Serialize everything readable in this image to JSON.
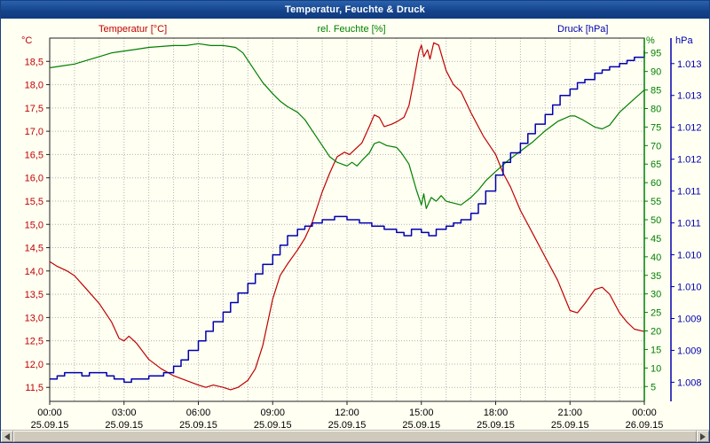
{
  "window": {
    "title": "Temperatur, Feuchte & Druck"
  },
  "legend": {
    "temperature": "Temperatur [°C]",
    "humidity": "rel. Feuchte [%]",
    "pressure": "Druck [hPa]"
  },
  "units": {
    "temperature": "°C",
    "humidity": "%",
    "pressure": "hPa"
  },
  "colors": {
    "temperature": "#c00000",
    "humidity": "#008000",
    "pressure": "#0000b0",
    "grid": "#b4b4b4",
    "frame": "#222222",
    "background": "#fffff2",
    "titlebar": "#174a94",
    "text": "#000000"
  },
  "chart_data": {
    "type": "line",
    "title": "Temperatur, Feuchte & Druck",
    "grid": true,
    "x_axis": {
      "kind": "time",
      "start": "25.09.15 00:00",
      "end": "26.09.15 00:00",
      "hours": 24,
      "grid_interval_hours": 1,
      "ticks": [
        {
          "hour": 0,
          "time": "00:00",
          "date": "25.09.15"
        },
        {
          "hour": 3,
          "time": "03:00",
          "date": "25.09.15"
        },
        {
          "hour": 6,
          "time": "06:00",
          "date": "25.09.15"
        },
        {
          "hour": 9,
          "time": "09:00",
          "date": "25.09.15"
        },
        {
          "hour": 12,
          "time": "12:00",
          "date": "25.09.15"
        },
        {
          "hour": 15,
          "time": "15:00",
          "date": "25.09.15"
        },
        {
          "hour": 18,
          "time": "18:00",
          "date": "25.09.15"
        },
        {
          "hour": 21,
          "time": "21:00",
          "date": "25.09.15"
        },
        {
          "hour": 24,
          "time": "00:00",
          "date": "26.09.15"
        }
      ]
    },
    "axes": {
      "temperature": {
        "unit": "°C",
        "side": "left",
        "color": "#c00000",
        "min": 11.2,
        "max": 19.0,
        "ticks": [
          {
            "v": 18.5,
            "label": "18,5"
          },
          {
            "v": 18,
            "label": "18,0"
          },
          {
            "v": 17.5,
            "label": "17,5"
          },
          {
            "v": 17,
            "label": "17,0"
          },
          {
            "v": 16.5,
            "label": "16,5"
          },
          {
            "v": 16,
            "label": "16,0"
          },
          {
            "v": 15.5,
            "label": "15,5"
          },
          {
            "v": 15,
            "label": "15,0"
          },
          {
            "v": 14.5,
            "label": "14,5"
          },
          {
            "v": 14,
            "label": "14,0"
          },
          {
            "v": 13.5,
            "label": "13,5"
          },
          {
            "v": 13,
            "label": "13,0"
          },
          {
            "v": 12.5,
            "label": "12,5"
          },
          {
            "v": 12,
            "label": "12,0"
          },
          {
            "v": 11.5,
            "label": "11,5"
          }
        ]
      },
      "humidity": {
        "unit": "%",
        "side": "right",
        "color": "#008000",
        "min": 1,
        "max": 99,
        "ticks": [
          {
            "v": 95,
            "label": "95"
          },
          {
            "v": 90,
            "label": "90"
          },
          {
            "v": 85,
            "label": "85"
          },
          {
            "v": 80,
            "label": "80"
          },
          {
            "v": 75,
            "label": "75"
          },
          {
            "v": 70,
            "label": "70"
          },
          {
            "v": 65,
            "label": "65"
          },
          {
            "v": 60,
            "label": "60"
          },
          {
            "v": 55,
            "label": "55"
          },
          {
            "v": 50,
            "label": "50"
          },
          {
            "v": 45,
            "label": "45"
          },
          {
            "v": 40,
            "label": "40"
          },
          {
            "v": 35,
            "label": "35"
          },
          {
            "v": 30,
            "label": "30"
          },
          {
            "v": 25,
            "label": "25"
          },
          {
            "v": 20,
            "label": "20"
          },
          {
            "v": 15,
            "label": "15"
          },
          {
            "v": 10,
            "label": "10"
          },
          {
            "v": 5,
            "label": "5"
          }
        ]
      },
      "pressure": {
        "unit": "hPa",
        "side": "far-right",
        "color": "#0000b0",
        "min": 1007.7,
        "max": 1013.4,
        "ticks": [
          {
            "v": 1013,
            "label": "1.013"
          },
          {
            "v": 1012.5,
            "label": "1.013"
          },
          {
            "v": 1012,
            "label": "1.012"
          },
          {
            "v": 1011.5,
            "label": "1.012"
          },
          {
            "v": 1011,
            "label": "1.011"
          },
          {
            "v": 1010.5,
            "label": "1.011"
          },
          {
            "v": 1010,
            "label": "1.010"
          },
          {
            "v": 1009.5,
            "label": "1.010"
          },
          {
            "v": 1009,
            "label": "1.009"
          },
          {
            "v": 1008.5,
            "label": "1.009"
          },
          {
            "v": 1008,
            "label": "1.008"
          }
        ]
      }
    },
    "series": [
      {
        "id": "temperature",
        "name": "Temperatur [°C]",
        "axis": "temperature",
        "color": "#c00000",
        "interpolation": "linear",
        "points": [
          [
            0,
            14.2
          ],
          [
            0.3,
            14.1
          ],
          [
            0.7,
            14.0
          ],
          [
            1,
            13.9
          ],
          [
            1.5,
            13.6
          ],
          [
            2,
            13.3
          ],
          [
            2.5,
            12.9
          ],
          [
            2.8,
            12.55
          ],
          [
            3,
            12.5
          ],
          [
            3.2,
            12.6
          ],
          [
            3.5,
            12.45
          ],
          [
            4,
            12.1
          ],
          [
            4.5,
            11.9
          ],
          [
            5,
            11.75
          ],
          [
            5.5,
            11.65
          ],
          [
            6,
            11.55
          ],
          [
            6.3,
            11.5
          ],
          [
            6.6,
            11.55
          ],
          [
            7,
            11.5
          ],
          [
            7.3,
            11.45
          ],
          [
            7.6,
            11.5
          ],
          [
            8,
            11.65
          ],
          [
            8.3,
            11.9
          ],
          [
            8.6,
            12.4
          ],
          [
            9,
            13.4
          ],
          [
            9.3,
            13.9
          ],
          [
            9.6,
            14.15
          ],
          [
            10,
            14.45
          ],
          [
            10.3,
            14.7
          ],
          [
            10.6,
            15.05
          ],
          [
            11,
            15.7
          ],
          [
            11.3,
            16.1
          ],
          [
            11.6,
            16.45
          ],
          [
            11.9,
            16.55
          ],
          [
            12.1,
            16.5
          ],
          [
            12.3,
            16.6
          ],
          [
            12.6,
            16.75
          ],
          [
            12.9,
            17.1
          ],
          [
            13.1,
            17.35
          ],
          [
            13.3,
            17.3
          ],
          [
            13.5,
            17.1
          ],
          [
            13.8,
            17.15
          ],
          [
            14,
            17.2
          ],
          [
            14.3,
            17.3
          ],
          [
            14.5,
            17.55
          ],
          [
            14.7,
            18.1
          ],
          [
            14.9,
            18.7
          ],
          [
            15,
            18.85
          ],
          [
            15.1,
            18.6
          ],
          [
            15.25,
            18.75
          ],
          [
            15.35,
            18.55
          ],
          [
            15.5,
            18.9
          ],
          [
            15.7,
            18.85
          ],
          [
            16,
            18.3
          ],
          [
            16.3,
            18.0
          ],
          [
            16.6,
            17.85
          ],
          [
            17,
            17.4
          ],
          [
            17.5,
            16.9
          ],
          [
            18,
            16.5
          ],
          [
            18.3,
            16.1
          ],
          [
            18.6,
            15.8
          ],
          [
            19,
            15.3
          ],
          [
            19.5,
            14.8
          ],
          [
            20,
            14.3
          ],
          [
            20.5,
            13.8
          ],
          [
            21,
            13.15
          ],
          [
            21.3,
            13.1
          ],
          [
            21.6,
            13.3
          ],
          [
            22,
            13.6
          ],
          [
            22.3,
            13.65
          ],
          [
            22.6,
            13.5
          ],
          [
            23,
            13.1
          ],
          [
            23.3,
            12.9
          ],
          [
            23.6,
            12.75
          ],
          [
            24,
            12.7
          ]
        ]
      },
      {
        "id": "humidity",
        "name": "rel. Feuchte [%]",
        "axis": "humidity",
        "color": "#008000",
        "interpolation": "linear",
        "points": [
          [
            0,
            91
          ],
          [
            0.5,
            91.5
          ],
          [
            1,
            92
          ],
          [
            1.5,
            93
          ],
          [
            2,
            94
          ],
          [
            2.5,
            95
          ],
          [
            3,
            95.5
          ],
          [
            3.5,
            96
          ],
          [
            4,
            96.5
          ],
          [
            5,
            97
          ],
          [
            5.5,
            97
          ],
          [
            6,
            97.5
          ],
          [
            6.5,
            97
          ],
          [
            7,
            97
          ],
          [
            7.5,
            96.5
          ],
          [
            7.8,
            95
          ],
          [
            8,
            93
          ],
          [
            8.3,
            90
          ],
          [
            8.6,
            87
          ],
          [
            9,
            84
          ],
          [
            9.3,
            82
          ],
          [
            9.6,
            80.5
          ],
          [
            10,
            79
          ],
          [
            10.3,
            77
          ],
          [
            10.6,
            74
          ],
          [
            11,
            70
          ],
          [
            11.3,
            67
          ],
          [
            11.6,
            65.5
          ],
          [
            12,
            64.5
          ],
          [
            12.2,
            65.5
          ],
          [
            12.4,
            64.5
          ],
          [
            12.6,
            66
          ],
          [
            12.9,
            68
          ],
          [
            13.1,
            70.5
          ],
          [
            13.3,
            71
          ],
          [
            13.6,
            70
          ],
          [
            14,
            69.5
          ],
          [
            14.2,
            68
          ],
          [
            14.5,
            65
          ],
          [
            14.8,
            58
          ],
          [
            15,
            54
          ],
          [
            15.1,
            57
          ],
          [
            15.2,
            53
          ],
          [
            15.4,
            56
          ],
          [
            15.6,
            55
          ],
          [
            15.8,
            56.5
          ],
          [
            16,
            55
          ],
          [
            16.3,
            54.5
          ],
          [
            16.6,
            54
          ],
          [
            17,
            56
          ],
          [
            17.3,
            58
          ],
          [
            17.6,
            60.5
          ],
          [
            18,
            63
          ],
          [
            18.5,
            66
          ],
          [
            19,
            68.5
          ],
          [
            19.5,
            71
          ],
          [
            20,
            74
          ],
          [
            20.5,
            76.5
          ],
          [
            21,
            78
          ],
          [
            21.2,
            78
          ],
          [
            21.5,
            77
          ],
          [
            22,
            75
          ],
          [
            22.3,
            74.5
          ],
          [
            22.6,
            75.5
          ],
          [
            23,
            79
          ],
          [
            23.5,
            82
          ],
          [
            24,
            85
          ]
        ]
      },
      {
        "id": "pressure",
        "name": "Druck [hPa]",
        "axis": "pressure",
        "color": "#0000b0",
        "interpolation": "step",
        "points": [
          [
            0,
            1008.05
          ],
          [
            0.3,
            1008.1
          ],
          [
            0.6,
            1008.15
          ],
          [
            1,
            1008.15
          ],
          [
            1.3,
            1008.1
          ],
          [
            1.6,
            1008.15
          ],
          [
            2,
            1008.15
          ],
          [
            2.3,
            1008.1
          ],
          [
            2.6,
            1008.05
          ],
          [
            3,
            1008.0
          ],
          [
            3.3,
            1008.05
          ],
          [
            3.7,
            1008.05
          ],
          [
            4,
            1008.1
          ],
          [
            4.3,
            1008.1
          ],
          [
            4.6,
            1008.15
          ],
          [
            5,
            1008.25
          ],
          [
            5.3,
            1008.35
          ],
          [
            5.6,
            1008.5
          ],
          [
            6,
            1008.65
          ],
          [
            6.3,
            1008.8
          ],
          [
            6.6,
            1008.95
          ],
          [
            7,
            1009.1
          ],
          [
            7.3,
            1009.25
          ],
          [
            7.6,
            1009.4
          ],
          [
            8,
            1009.55
          ],
          [
            8.3,
            1009.7
          ],
          [
            8.6,
            1009.85
          ],
          [
            9,
            1010.0
          ],
          [
            9.3,
            1010.15
          ],
          [
            9.6,
            1010.3
          ],
          [
            10,
            1010.4
          ],
          [
            10.3,
            1010.45
          ],
          [
            10.6,
            1010.5
          ],
          [
            11,
            1010.55
          ],
          [
            11.5,
            1010.6
          ],
          [
            12,
            1010.55
          ],
          [
            12.5,
            1010.5
          ],
          [
            13,
            1010.45
          ],
          [
            13.5,
            1010.4
          ],
          [
            14,
            1010.35
          ],
          [
            14.3,
            1010.3
          ],
          [
            14.6,
            1010.4
          ],
          [
            15,
            1010.35
          ],
          [
            15.3,
            1010.3
          ],
          [
            15.6,
            1010.4
          ],
          [
            16,
            1010.45
          ],
          [
            16.3,
            1010.5
          ],
          [
            16.6,
            1010.55
          ],
          [
            17,
            1010.65
          ],
          [
            17.3,
            1010.8
          ],
          [
            17.6,
            1011.0
          ],
          [
            18,
            1011.25
          ],
          [
            18.3,
            1011.45
          ],
          [
            18.6,
            1011.6
          ],
          [
            19,
            1011.75
          ],
          [
            19.3,
            1011.9
          ],
          [
            19.6,
            1012.05
          ],
          [
            20,
            1012.2
          ],
          [
            20.3,
            1012.35
          ],
          [
            20.6,
            1012.5
          ],
          [
            21,
            1012.6
          ],
          [
            21.3,
            1012.7
          ],
          [
            21.6,
            1012.75
          ],
          [
            22,
            1012.85
          ],
          [
            22.3,
            1012.9
          ],
          [
            22.6,
            1012.95
          ],
          [
            23,
            1013.0
          ],
          [
            23.3,
            1013.05
          ],
          [
            23.6,
            1013.1
          ],
          [
            24,
            1013.2
          ]
        ]
      }
    ]
  }
}
